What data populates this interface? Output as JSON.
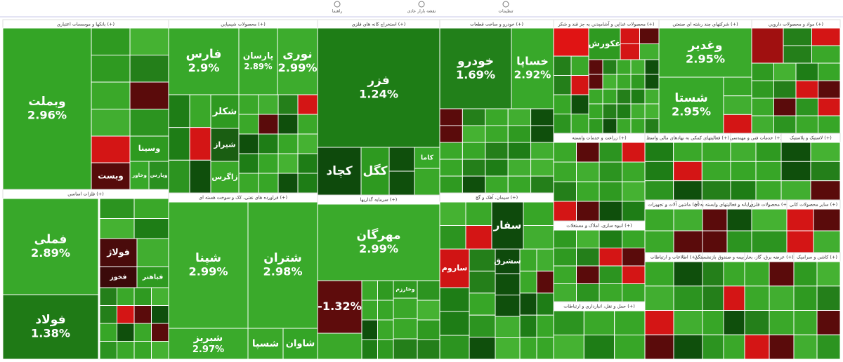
{
  "toolbar": {
    "items": [
      "راهنما",
      "نقشه بازار عادی",
      "تنظیمات"
    ]
  },
  "chart_data": {
    "type": "treemap",
    "sectors": [
      {
        "name": "بانکها و موسسات اعتباری (+)",
        "tiles": [
          {
            "name": "وبملت",
            "value": 2.96,
            "value_label": "2.96%",
            "color": "#34a526"
          },
          {
            "name": "وسینا",
            "color": "#2e9a20"
          },
          {
            "name": "وخاور",
            "color": "#37a829"
          },
          {
            "name": "وپارس",
            "color": "#2a9020"
          },
          {
            "name": "ویست",
            "color": "#560b0b"
          }
        ]
      },
      {
        "name": "فلزات اساسی (+)",
        "tiles": [
          {
            "name": "فملی",
            "value": 2.89,
            "value_label": "2.89%",
            "color": "#38a82a"
          },
          {
            "name": "فولاد",
            "value": 1.38,
            "value_label": "1.38%",
            "color": "#1f7a16"
          },
          {
            "name": "فولاژ",
            "color": "#4a0b0b"
          },
          {
            "name": "فخوز",
            "color": "#3b0a0a"
          },
          {
            "name": "فباهنر",
            "color": "#2e9a20"
          }
        ]
      },
      {
        "name": "محصولات شیمیایی (+)",
        "tiles": [
          {
            "name": "فارس",
            "value": 2.9,
            "value_label": "2.9%",
            "color": "#38a82a"
          },
          {
            "name": "پارسان",
            "value": 2.89,
            "value_label": "2.89%",
            "color": "#3aaa2b"
          },
          {
            "name": "نوری",
            "value": 2.99,
            "value_label": "2.99%",
            "color": "#3dac2d"
          },
          {
            "name": "شکلر",
            "color": "#2f9a21"
          },
          {
            "name": "شیراز",
            "color": "#1a5e12"
          },
          {
            "name": "زاگرس",
            "color": "#3aa829"
          }
        ]
      },
      {
        "name": "فراورده های نفتی، کک و سوخت هسته ای (+)",
        "tiles": [
          {
            "name": "شپنا",
            "value": 2.99,
            "value_label": "2.99%",
            "color": "#3dac2d"
          },
          {
            "name": "شتران",
            "value": 2.98,
            "value_label": "2.98%",
            "color": "#3aaa2b"
          },
          {
            "name": "شبریز",
            "value": 2.97,
            "value_label": "2.97%",
            "color": "#3aaa2b"
          },
          {
            "name": "شسپا",
            "color": "#3aa829"
          },
          {
            "name": "شاوان",
            "color": "#34a526"
          }
        ]
      },
      {
        "name": "استخراج کانه های فلزی (+)",
        "tiles": [
          {
            "name": "فزر",
            "value": 1.24,
            "value_label": "1.24%",
            "color": "#1e7d16"
          },
          {
            "name": "کچاد",
            "color": "#0e4a0c"
          },
          {
            "name": "کگل",
            "color": "#2e9a20"
          },
          {
            "name": "کاما",
            "color": "#37a829"
          }
        ]
      },
      {
        "name": "سرمایه گذاریها (+)",
        "tiles": [
          {
            "name": "مهرگان",
            "value": 2.99,
            "value_label": "2.99%",
            "color": "#3aaa2b"
          },
          {
            "value": -1.32,
            "value_label": "-1.32%",
            "color": "#5e0c0c"
          },
          {
            "name": "وخارزم",
            "color": "#2f9a21"
          }
        ]
      },
      {
        "name": "خودرو و ساخت قطعات (+)",
        "tiles": [
          {
            "name": "خودرو",
            "value": 1.69,
            "value_label": "1.69%",
            "color": "#22801a"
          },
          {
            "name": "خساپا",
            "value": 2.92,
            "value_label": "2.92%",
            "color": "#38a82a"
          }
        ]
      },
      {
        "name": "سیمان، آهک و گچ (+)",
        "tiles": [
          {
            "name": "سفار",
            "color": "#0e4a0c"
          },
          {
            "name": "ساروم",
            "color": "#d01414"
          },
          {
            "name": "سشرق",
            "color": "#0e4a0c"
          }
        ]
      },
      {
        "name": "محصولات غذایی و آشامیدنی به جز قند و شکر (+)",
        "tiles": [
          {
            "color": "#e01414"
          },
          {
            "name": "غکورش",
            "color": "#2f9a21"
          }
        ]
      },
      {
        "name": "شرکتهای چند رشته ای صنعتی (+)",
        "tiles": [
          {
            "name": "وغدیر",
            "value": 2.95,
            "value_label": "2.95%",
            "color": "#3aaa2b"
          },
          {
            "name": "شستا",
            "value": 2.95,
            "value_label": "2.95%",
            "color": "#37a829"
          }
        ]
      },
      {
        "name": "مواد و محصولات دارویی (+)",
        "tiles": [
          {
            "color": "#a01010"
          }
        ]
      },
      {
        "name": "زراعت و خدمات وابسته (+)",
        "tiles": []
      },
      {
        "name": "انبوه سازی، املاک و مستغلات (+)",
        "tiles": []
      },
      {
        "name": "حمل و نقل، انبارداری و ارتباطات (+)",
        "tiles": []
      },
      {
        "name": "فعالیتهای کمکی به نهادهای مالی واسط (+)",
        "tiles": []
      },
      {
        "name": "خدمات فنی و مهندسی (+)",
        "tiles": []
      },
      {
        "name": "لاستیک و پلاستیک (+)",
        "tiles": []
      },
      {
        "name": "ماشین آلات و تجهیزات (+)",
        "tiles": []
      },
      {
        "name": "رایانه و فعالیتهای وابسته به آن (+)",
        "tiles": []
      },
      {
        "name": "محصولات فلزی (+)",
        "tiles": []
      },
      {
        "name": "سایر محصولات کانی (+)",
        "tiles": []
      },
      {
        "name": "اطلاعات و ارتباطات (+)",
        "tiles": []
      },
      {
        "name": "بیمه و صندوق بازنشستگی (+)",
        "tiles": []
      },
      {
        "name": "عرضه برق، گاز، بخار (+)",
        "tiles": []
      },
      {
        "name": "کاشی و سرامیک (+)",
        "tiles": []
      }
    ]
  }
}
